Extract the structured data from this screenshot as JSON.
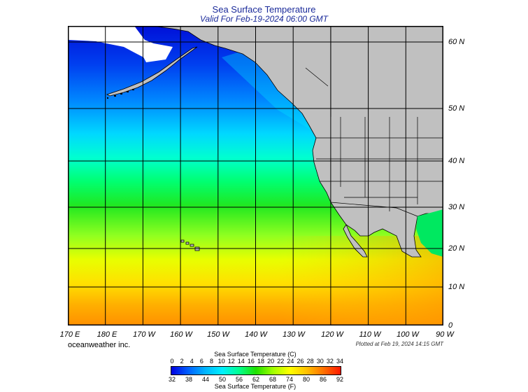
{
  "header": {
    "title": "Sea Surface Temperature",
    "subtitle": "Valid For Feb-19-2024 06:00 GMT"
  },
  "map": {
    "longitude_labels": [
      "170 E",
      "180 E",
      "170 W",
      "160 W",
      "150 W",
      "140 W",
      "130 W",
      "120 W",
      "110 W",
      "100 W",
      "90 W"
    ],
    "latitude_labels": [
      "60 N",
      "50 N",
      "40 N",
      "30 N",
      "20 N",
      "10 N",
      "0"
    ],
    "colors": {
      "land": "#c0c0c0",
      "ice": "#ffffff",
      "grid": "#000000"
    }
  },
  "footer": {
    "credit": "oceanweather inc.",
    "plotted": "Plotted at Feb 19, 2024 14:15 GMT"
  },
  "legend": {
    "title_celsius": "Sea Surface Temperature (C)",
    "title_fahrenheit": "Sea Surface Temperature (F)",
    "celsius_ticks": [
      "0",
      "2",
      "4",
      "6",
      "8",
      "10",
      "12",
      "14",
      "16",
      "18",
      "20",
      "22",
      "24",
      "26",
      "28",
      "30",
      "32",
      "34"
    ],
    "fahrenheit_ticks": [
      "32",
      "38",
      "44",
      "50",
      "56",
      "62",
      "68",
      "74",
      "80",
      "86",
      "92"
    ],
    "gradient_colors": [
      "#0000e0",
      "#0060ff",
      "#00b4ff",
      "#00f0ff",
      "#00ff90",
      "#20e000",
      "#a0ff00",
      "#ffff00",
      "#ffc000",
      "#ff7000",
      "#ff1800"
    ]
  }
}
